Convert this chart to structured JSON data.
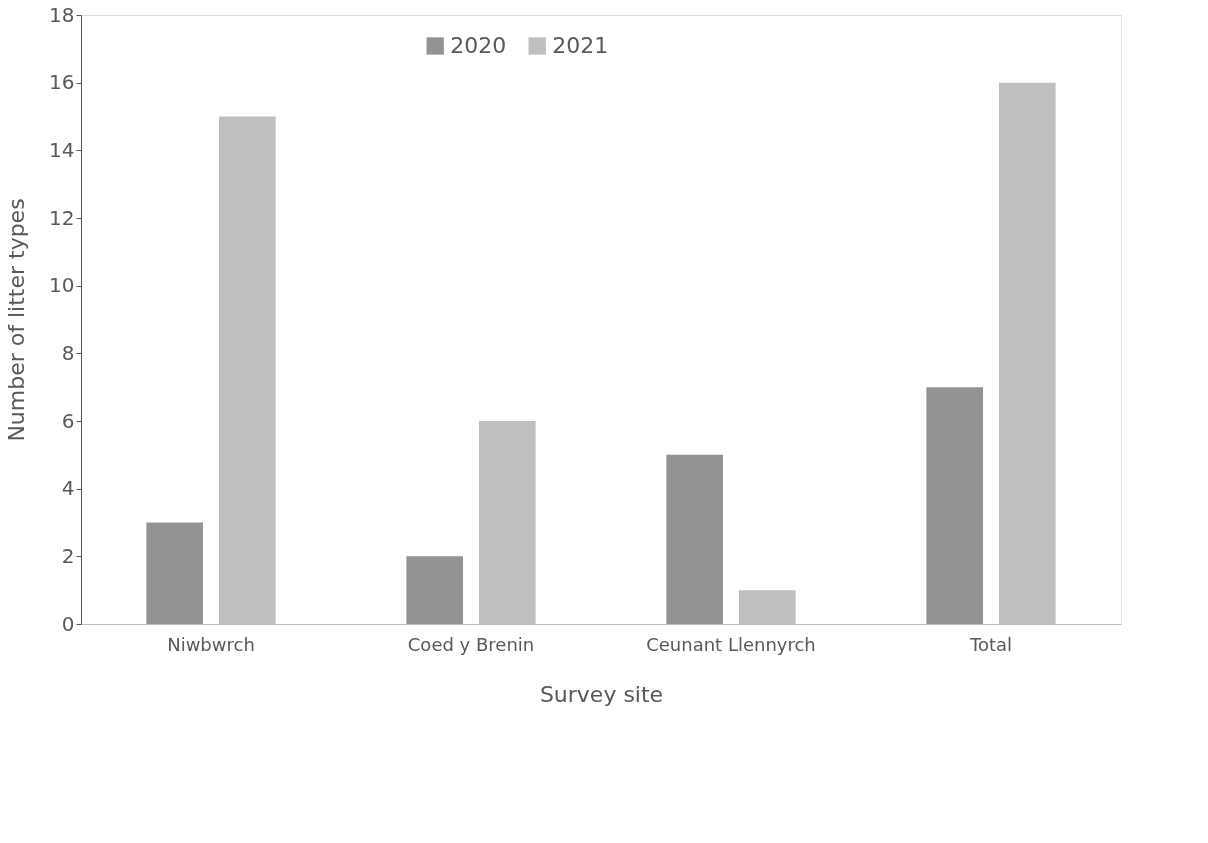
{
  "chart_data": {
    "type": "bar",
    "xlabel": "Survey site",
    "ylabel": "Number of litter types",
    "categories": [
      "Niwbwrch",
      "Coed y Brenin",
      "Ceunant Llennyrch",
      "Total"
    ],
    "series": [
      {
        "name": "2020",
        "color": "#939393",
        "values": [
          3,
          2,
          5,
          7
        ]
      },
      {
        "name": "2021",
        "color": "#bfbfbf",
        "values": [
          15,
          6,
          1,
          16
        ]
      }
    ],
    "ylim": [
      0,
      18
    ],
    "yticks": [
      0,
      2,
      4,
      6,
      8,
      10,
      12,
      14,
      16,
      18
    ],
    "grid": false,
    "legend": "top"
  }
}
